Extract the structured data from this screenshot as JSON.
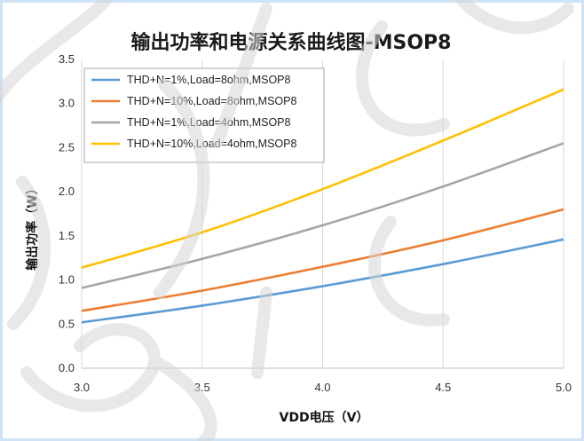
{
  "chart_data": {
    "type": "line",
    "title": "输出功率和电源关系曲线图-MSOP8",
    "xlabel": "VDD电压（V）",
    "ylabel": "输出功率（W）",
    "xlim": [
      3.0,
      5.0
    ],
    "ylim": [
      0.0,
      3.5
    ],
    "x_ticks": [
      "3.0",
      "3.5",
      "4.0",
      "4.5",
      "5.0"
    ],
    "y_ticks": [
      "0.0",
      "0.5",
      "1.0",
      "1.5",
      "2.0",
      "2.5",
      "3.0",
      "3.5"
    ],
    "grid": "vertical",
    "legend_position": "top-left",
    "x": [
      3.0,
      3.5,
      4.0,
      4.5,
      5.0
    ],
    "series": [
      {
        "name": "THD+N=1%,Load=8ohm,MSOP8",
        "color": "#5b9bd5",
        "values": [
          0.52,
          0.71,
          0.93,
          1.18,
          1.46
        ]
      },
      {
        "name": "THD+N=10%,Load=8ohm,MSOP8",
        "color": "#ed7d31",
        "values": [
          0.65,
          0.88,
          1.15,
          1.45,
          1.8
        ]
      },
      {
        "name": "THD+N=1%,Load=4ohm,MSOP8",
        "color": "#a5a5a5",
        "values": [
          0.91,
          1.24,
          1.62,
          2.06,
          2.55
        ]
      },
      {
        "name": "THD+N=10%,Load=4ohm,MSOP8",
        "color": "#ffc000",
        "values": [
          1.14,
          1.54,
          2.03,
          2.58,
          3.16
        ]
      }
    ]
  }
}
